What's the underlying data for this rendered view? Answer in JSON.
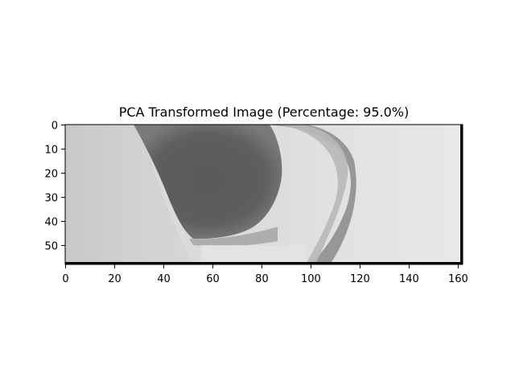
{
  "chart_data": {
    "type": "heatmap",
    "title": "PCA Transformed Image (Percentage: 95.0%)",
    "xlabel": "",
    "ylabel": "",
    "colormap": "gray",
    "xlim": [
      0,
      162
    ],
    "ylim": [
      0,
      58
    ],
    "y_axis_inverted": true,
    "grid": false,
    "x_ticks": [
      0,
      20,
      40,
      60,
      80,
      100,
      120,
      140,
      160
    ],
    "y_ticks": [
      0,
      10,
      20,
      30,
      40,
      50
    ],
    "x_tick_labels": [
      "0",
      "20",
      "40",
      "60",
      "80",
      "100",
      "120",
      "140",
      "160"
    ],
    "y_tick_labels": [
      "0",
      "10",
      "20",
      "30",
      "40",
      "50"
    ]
  }
}
